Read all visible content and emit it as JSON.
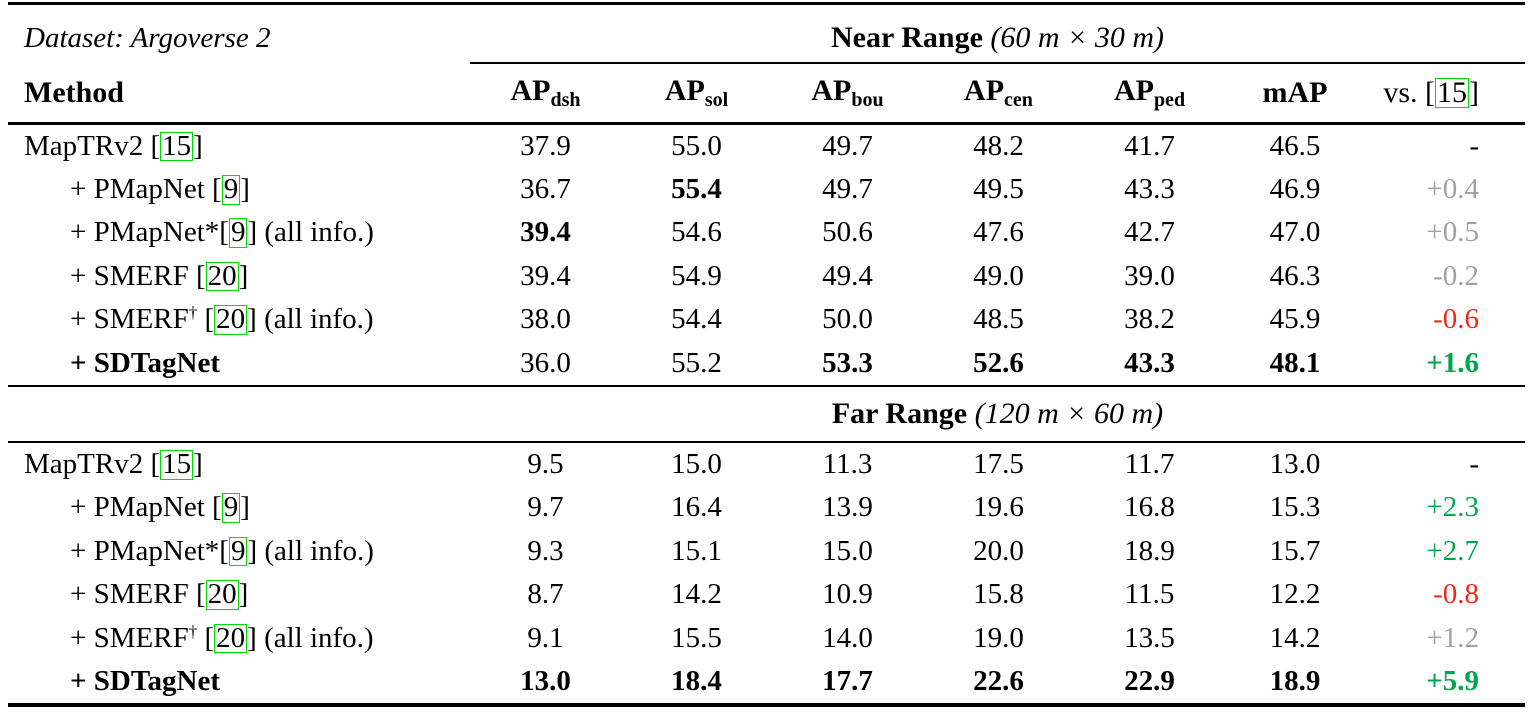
{
  "colors": {
    "green": "#00a651",
    "red": "#ef2917",
    "gray": "#a1a1a6",
    "cite_border": "#00dd00",
    "text": "#000000"
  },
  "table": {
    "dataset_label": "Dataset: Argoverse 2",
    "header": {
      "method": "Method",
      "ap_columns": [
        {
          "main": "AP",
          "sub": "dsh"
        },
        {
          "main": "AP",
          "sub": "sol"
        },
        {
          "main": "AP",
          "sub": "bou"
        },
        {
          "main": "AP",
          "sub": "cen"
        },
        {
          "main": "AP",
          "sub": "ped"
        }
      ],
      "map": "mAP",
      "vs_label": "vs.",
      "vs_cite": "15"
    },
    "near": {
      "title": "Near Range",
      "subtitle": "(60 m × 30 m)",
      "rows": [
        {
          "method": {
            "pre": "MapTRv2 ",
            "sup": "",
            "gap": "",
            "cite": "15",
            "post": "",
            "bold": false,
            "indent": false
          },
          "values": [
            {
              "v": "37.9",
              "bold": false
            },
            {
              "v": "55.0",
              "bold": false
            },
            {
              "v": "49.7",
              "bold": false
            },
            {
              "v": "48.2",
              "bold": false
            },
            {
              "v": "41.7",
              "bold": false
            },
            {
              "v": "46.5",
              "bold": false
            }
          ],
          "vs": {
            "v": "-",
            "color": "dark",
            "bold": false
          }
        },
        {
          "method": {
            "pre": "+ PMapNet ",
            "sup": "",
            "gap": "",
            "cite": "9",
            "post": "",
            "bold": false,
            "indent": true
          },
          "values": [
            {
              "v": "36.7",
              "bold": false
            },
            {
              "v": "55.4",
              "bold": true
            },
            {
              "v": "49.7",
              "bold": false
            },
            {
              "v": "49.5",
              "bold": false
            },
            {
              "v": "43.3",
              "bold": false
            },
            {
              "v": "46.9",
              "bold": false
            }
          ],
          "vs": {
            "v": "+0.4",
            "color": "gray",
            "bold": false
          }
        },
        {
          "method": {
            "pre": "+ PMapNet*",
            "sup": "",
            "gap": "",
            "cite": "9",
            "post": " (all info.)",
            "bold": false,
            "indent": true
          },
          "values": [
            {
              "v": "39.4",
              "bold": true
            },
            {
              "v": "54.6",
              "bold": false
            },
            {
              "v": "50.6",
              "bold": false
            },
            {
              "v": "47.6",
              "bold": false
            },
            {
              "v": "42.7",
              "bold": false
            },
            {
              "v": "47.0",
              "bold": false
            }
          ],
          "vs": {
            "v": "+0.5",
            "color": "gray",
            "bold": false
          }
        },
        {
          "method": {
            "pre": "+ SMERF ",
            "sup": "",
            "gap": "",
            "cite": "20",
            "post": "",
            "bold": false,
            "indent": true
          },
          "values": [
            {
              "v": "39.4",
              "bold": false
            },
            {
              "v": "54.9",
              "bold": false
            },
            {
              "v": "49.4",
              "bold": false
            },
            {
              "v": "49.0",
              "bold": false
            },
            {
              "v": "39.0",
              "bold": false
            },
            {
              "v": "46.3",
              "bold": false
            }
          ],
          "vs": {
            "v": "-0.2",
            "color": "gray",
            "bold": false
          }
        },
        {
          "method": {
            "pre": "+ SMERF",
            "sup": "†",
            "gap": " ",
            "cite": "20",
            "post": " (all info.)",
            "bold": false,
            "indent": true
          },
          "values": [
            {
              "v": "38.0",
              "bold": false
            },
            {
              "v": "54.4",
              "bold": false
            },
            {
              "v": "50.0",
              "bold": false
            },
            {
              "v": "48.5",
              "bold": false
            },
            {
              "v": "38.2",
              "bold": false
            },
            {
              "v": "45.9",
              "bold": false
            }
          ],
          "vs": {
            "v": "-0.6",
            "color": "red",
            "bold": false
          }
        },
        {
          "method": {
            "pre": "+ SDTagNet",
            "sup": "",
            "gap": "",
            "cite": "",
            "post": "",
            "bold": true,
            "indent": true
          },
          "values": [
            {
              "v": "36.0",
              "bold": false
            },
            {
              "v": "55.2",
              "bold": false
            },
            {
              "v": "53.3",
              "bold": true
            },
            {
              "v": "52.6",
              "bold": true
            },
            {
              "v": "43.3",
              "bold": true
            },
            {
              "v": "48.1",
              "bold": true
            }
          ],
          "vs": {
            "v": "+1.6",
            "color": "green",
            "bold": true
          }
        }
      ]
    },
    "far": {
      "title": "Far Range",
      "subtitle": "(120 m × 60 m)",
      "rows": [
        {
          "method": {
            "pre": "MapTRv2 ",
            "sup": "",
            "gap": "",
            "cite": "15",
            "post": "",
            "bold": false,
            "indent": false
          },
          "values": [
            {
              "v": "9.5",
              "bold": false
            },
            {
              "v": "15.0",
              "bold": false
            },
            {
              "v": "11.3",
              "bold": false
            },
            {
              "v": "17.5",
              "bold": false
            },
            {
              "v": "11.7",
              "bold": false
            },
            {
              "v": "13.0",
              "bold": false
            }
          ],
          "vs": {
            "v": "-",
            "color": "dark",
            "bold": false
          }
        },
        {
          "method": {
            "pre": "+ PMapNet ",
            "sup": "",
            "gap": "",
            "cite": "9",
            "post": "",
            "bold": false,
            "indent": true
          },
          "values": [
            {
              "v": "9.7",
              "bold": false
            },
            {
              "v": "16.4",
              "bold": false
            },
            {
              "v": "13.9",
              "bold": false
            },
            {
              "v": "19.6",
              "bold": false
            },
            {
              "v": "16.8",
              "bold": false
            },
            {
              "v": "15.3",
              "bold": false
            }
          ],
          "vs": {
            "v": "+2.3",
            "color": "green",
            "bold": false
          }
        },
        {
          "method": {
            "pre": "+ PMapNet*",
            "sup": "",
            "gap": "",
            "cite": "9",
            "post": " (all info.)",
            "bold": false,
            "indent": true
          },
          "values": [
            {
              "v": "9.3",
              "bold": false
            },
            {
              "v": "15.1",
              "bold": false
            },
            {
              "v": "15.0",
              "bold": false
            },
            {
              "v": "20.0",
              "bold": false
            },
            {
              "v": "18.9",
              "bold": false
            },
            {
              "v": "15.7",
              "bold": false
            }
          ],
          "vs": {
            "v": "+2.7",
            "color": "green",
            "bold": false
          }
        },
        {
          "method": {
            "pre": "+ SMERF ",
            "sup": "",
            "gap": "",
            "cite": "20",
            "post": "",
            "bold": false,
            "indent": true
          },
          "values": [
            {
              "v": "8.7",
              "bold": false
            },
            {
              "v": "14.2",
              "bold": false
            },
            {
              "v": "10.9",
              "bold": false
            },
            {
              "v": "15.8",
              "bold": false
            },
            {
              "v": "11.5",
              "bold": false
            },
            {
              "v": "12.2",
              "bold": false
            }
          ],
          "vs": {
            "v": "-0.8",
            "color": "red",
            "bold": false
          }
        },
        {
          "method": {
            "pre": "+ SMERF",
            "sup": "†",
            "gap": " ",
            "cite": "20",
            "post": " (all info.)",
            "bold": false,
            "indent": true
          },
          "values": [
            {
              "v": "9.1",
              "bold": false
            },
            {
              "v": "15.5",
              "bold": false
            },
            {
              "v": "14.0",
              "bold": false
            },
            {
              "v": "19.0",
              "bold": false
            },
            {
              "v": "13.5",
              "bold": false
            },
            {
              "v": "14.2",
              "bold": false
            }
          ],
          "vs": {
            "v": "+1.2",
            "color": "gray",
            "bold": false
          }
        },
        {
          "method": {
            "pre": "+ SDTagNet",
            "sup": "",
            "gap": "",
            "cite": "",
            "post": "",
            "bold": true,
            "indent": true
          },
          "values": [
            {
              "v": "13.0",
              "bold": true
            },
            {
              "v": "18.4",
              "bold": true
            },
            {
              "v": "17.7",
              "bold": true
            },
            {
              "v": "22.6",
              "bold": true
            },
            {
              "v": "22.9",
              "bold": true
            },
            {
              "v": "18.9",
              "bold": true
            }
          ],
          "vs": {
            "v": "+5.9",
            "color": "green",
            "bold": true
          }
        }
      ]
    }
  }
}
